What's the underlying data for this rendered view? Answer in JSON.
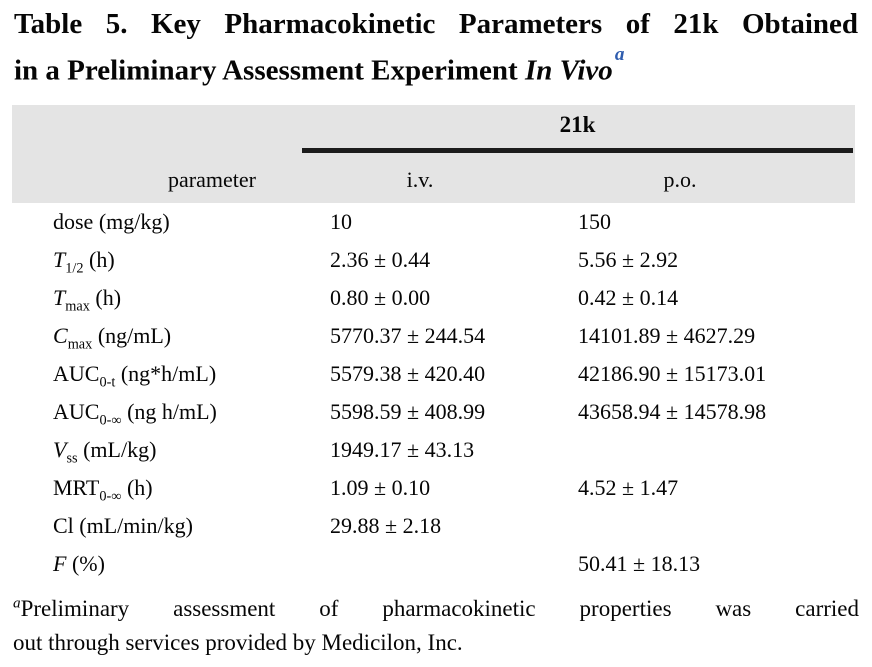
{
  "colors": {
    "header_bg": "#e4e4e4",
    "rule": "#1c1c1c",
    "text": "#060606",
    "title_marker": "#2e5cae"
  },
  "title": {
    "line1": "Table 5. Key Pharmacokinetic Parameters of 21k Obtained",
    "line2": "in a Preliminary Assessment Experiment ",
    "line2_italic": "In Vivo",
    "footnote_marker": "a"
  },
  "table": {
    "group_header": "21k",
    "columns": [
      "parameter",
      "i.v.",
      "p.o."
    ],
    "rows": [
      {
        "base": "dose",
        "italic": false,
        "sub": "",
        "unit": " (mg/kg)",
        "iv": "10",
        "po": "150"
      },
      {
        "base": "T",
        "italic": true,
        "sub": "1/2",
        "unit": " (h)",
        "iv": "2.36 ± 0.44",
        "po": "5.56 ± 2.92"
      },
      {
        "base": "T",
        "italic": true,
        "sub": "max",
        "unit": " (h)",
        "iv": "0.80 ± 0.00",
        "po": "0.42 ± 0.14"
      },
      {
        "base": "C",
        "italic": true,
        "sub": "max",
        "unit": " (ng/mL)",
        "iv": "5770.37 ± 244.54",
        "po": "14101.89 ± 4627.29"
      },
      {
        "base": "AUC",
        "italic": false,
        "sub": "0-t",
        "unit": " (ng*h/mL)",
        "iv": "5579.38 ± 420.40",
        "po": "42186.90 ± 15173.01"
      },
      {
        "base": "AUC",
        "italic": false,
        "sub": "0-∞",
        "unit": " (ng h/mL)",
        "iv": "5598.59 ± 408.99",
        "po": "43658.94 ± 14578.98"
      },
      {
        "base": "V",
        "italic": true,
        "sub": "ss",
        "unit": " (mL/kg)",
        "iv": "1949.17 ± 43.13",
        "po": ""
      },
      {
        "base": "MRT",
        "italic": false,
        "sub": "0-∞",
        "unit": " (h)",
        "iv": "1.09 ± 0.10",
        "po": "4.52 ± 1.47"
      },
      {
        "base": "Cl",
        "italic": false,
        "sub": "",
        "unit": " (mL/min/kg)",
        "iv": "29.88 ± 2.18",
        "po": ""
      },
      {
        "base": "F",
        "italic": true,
        "sub": "",
        "unit": " (%)",
        "iv": "",
        "po": "50.41 ± 18.13"
      }
    ]
  },
  "footnote": {
    "marker": "a",
    "line1": "Preliminary assessment of pharmacokinetic properties was carried",
    "line2": "out through services provided by Medicilon, Inc."
  }
}
